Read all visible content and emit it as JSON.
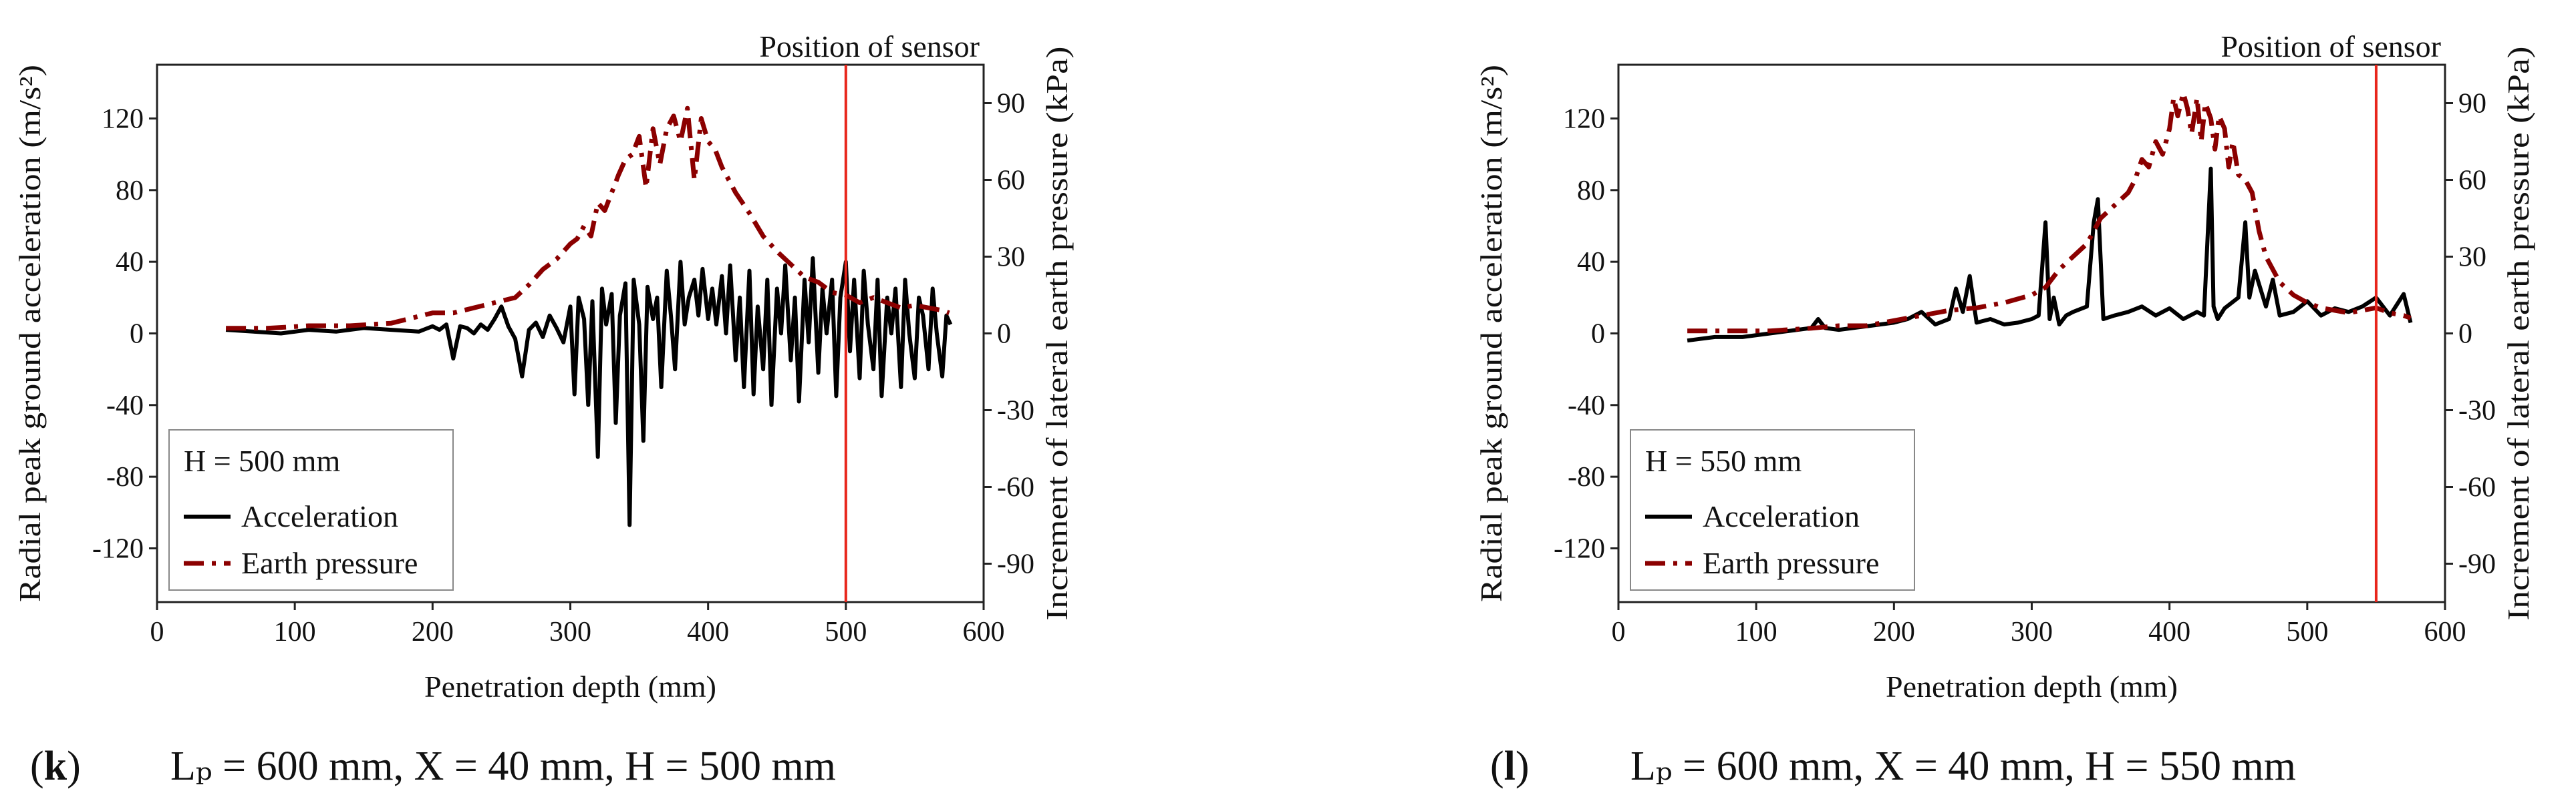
{
  "figure": {
    "panels": [
      {
        "id": "k",
        "caption_letter": "k",
        "caption_text": "Lₚ = 600 mm, X = 40 mm, H = 500 mm",
        "legend_title": "H = 500 mm",
        "sensor_label": "Position of sensor"
      },
      {
        "id": "l",
        "caption_letter": "l",
        "caption_text": "Lₚ = 600 mm, X = 40 mm, H = 550 mm",
        "legend_title": "H = 550 mm",
        "sensor_label": "Position of sensor"
      }
    ]
  },
  "chart_data": [
    {
      "type": "line",
      "panel": "k",
      "title": "",
      "xlabel": "Penetration depth (mm)",
      "ylabel": "Radial peak ground acceleration (m/s²)",
      "ylabel_right": "Increment of lateral earth pressure (kPa)",
      "xlim": [
        0,
        600
      ],
      "ylim": [
        -150,
        150
      ],
      "ylim_right": [
        -105,
        105
      ],
      "xticks": [
        0,
        100,
        200,
        300,
        400,
        500,
        600
      ],
      "yticks": [
        -120,
        -80,
        -40,
        0,
        40,
        80,
        120
      ],
      "yticks_right": [
        -90,
        -60,
        -30,
        0,
        30,
        60,
        90
      ],
      "sensor_position": 500,
      "legend_location": "lower-left",
      "colors": {
        "acceleration": "#000000",
        "earth_pressure": "#8B0000",
        "sensor": "#E8261C"
      },
      "series": [
        {
          "name": "Acceleration",
          "axis": "left",
          "style": "solid",
          "x": [
            50,
            70,
            90,
            110,
            130,
            150,
            170,
            190,
            200,
            205,
            210,
            215,
            220,
            225,
            230,
            235,
            240,
            245,
            250,
            255,
            260,
            265,
            270,
            275,
            280,
            285,
            290,
            295,
            300,
            303,
            306,
            310,
            313,
            316,
            320,
            323,
            326,
            330,
            333,
            336,
            340,
            343,
            346,
            350,
            353,
            356,
            360,
            363,
            366,
            370,
            373,
            376,
            380,
            383,
            386,
            390,
            393,
            396,
            400,
            403,
            406,
            410,
            413,
            416,
            420,
            423,
            426,
            430,
            433,
            436,
            440,
            443,
            446,
            450,
            453,
            456,
            460,
            463,
            466,
            470,
            473,
            476,
            480,
            483,
            486,
            490,
            493,
            496,
            500,
            503,
            506,
            510,
            513,
            516,
            520,
            523,
            526,
            530,
            533,
            536,
            540,
            543,
            546,
            550,
            553,
            556,
            560,
            563,
            566,
            570,
            573,
            576
          ],
          "values": [
            2,
            1,
            0,
            2,
            1,
            3,
            2,
            1,
            4,
            2,
            5,
            -14,
            4,
            3,
            0,
            5,
            2,
            8,
            15,
            4,
            -3,
            -24,
            2,
            6,
            -2,
            10,
            3,
            -5,
            15,
            -34,
            20,
            8,
            -40,
            18,
            -69,
            25,
            5,
            22,
            -50,
            10,
            28,
            -107,
            30,
            5,
            -60,
            26,
            8,
            20,
            -30,
            35,
            10,
            -20,
            40,
            5,
            20,
            30,
            10,
            36,
            8,
            25,
            5,
            32,
            0,
            38,
            -15,
            20,
            -30,
            35,
            -34,
            15,
            -20,
            30,
            -40,
            25,
            0,
            38,
            -15,
            20,
            -38,
            30,
            -5,
            42,
            -22,
            25,
            0,
            30,
            -35,
            20,
            40,
            -10,
            30,
            -25,
            35,
            5,
            -20,
            30,
            -35,
            20,
            0,
            25,
            -30,
            30,
            0,
            -25,
            20,
            10,
            -20,
            25,
            0,
            -24,
            10,
            5
          ]
        },
        {
          "name": "Earth pressure",
          "axis": "right",
          "style": "dash-dot",
          "x": [
            50,
            80,
            110,
            140,
            170,
            200,
            215,
            230,
            245,
            260,
            270,
            280,
            290,
            300,
            305,
            310,
            315,
            320,
            325,
            330,
            335,
            340,
            345,
            350,
            355,
            360,
            365,
            370,
            375,
            380,
            385,
            390,
            395,
            400,
            405,
            410,
            420,
            430,
            440,
            450,
            460,
            470,
            480,
            490,
            500,
            510,
            520,
            530,
            540,
            550,
            560,
            570,
            575
          ],
          "values": [
            2,
            2,
            3,
            3,
            4,
            8,
            8,
            10,
            12,
            14,
            19,
            25,
            29,
            35,
            37,
            42,
            38,
            51,
            48,
            55,
            62,
            68,
            70,
            77,
            57,
            80,
            66,
            80,
            85,
            75,
            88,
            60,
            84,
            75,
            72,
            65,
            55,
            47,
            38,
            32,
            27,
            22,
            20,
            16,
            15,
            12,
            14,
            12,
            10,
            11,
            10,
            9,
            8
          ]
        }
      ]
    },
    {
      "type": "line",
      "panel": "l",
      "title": "",
      "xlabel": "Penetration depth (mm)",
      "ylabel": "Radial peak ground acceleration (m/s²)",
      "ylabel_right": "Increment of lateral earth pressure (kPa)",
      "xlim": [
        0,
        600
      ],
      "ylim": [
        -150,
        150
      ],
      "ylim_right": [
        -105,
        105
      ],
      "xticks": [
        0,
        100,
        200,
        300,
        400,
        500,
        600
      ],
      "yticks": [
        -120,
        -80,
        -40,
        0,
        40,
        80,
        120
      ],
      "yticks_right": [
        -90,
        -60,
        -30,
        0,
        30,
        60,
        90
      ],
      "sensor_position": 550,
      "legend_location": "lower-left",
      "colors": {
        "acceleration": "#000000",
        "earth_pressure": "#8B0000",
        "sensor": "#E8261C"
      },
      "series": [
        {
          "name": "Acceleration",
          "axis": "left",
          "style": "solid",
          "x": [
            50,
            70,
            90,
            110,
            130,
            140,
            145,
            150,
            160,
            180,
            200,
            210,
            220,
            230,
            240,
            245,
            250,
            255,
            260,
            270,
            280,
            290,
            300,
            305,
            310,
            313,
            316,
            320,
            325,
            330,
            340,
            345,
            348,
            352,
            360,
            370,
            380,
            390,
            400,
            410,
            420,
            425,
            430,
            432,
            435,
            440,
            450,
            455,
            458,
            462,
            470,
            475,
            480,
            490,
            500,
            510,
            520,
            530,
            540,
            550,
            560,
            570,
            575
          ],
          "values": [
            -4,
            -2,
            -2,
            0,
            2,
            3,
            8,
            3,
            2,
            4,
            6,
            8,
            12,
            5,
            8,
            25,
            12,
            32,
            6,
            8,
            5,
            6,
            8,
            10,
            62,
            8,
            20,
            5,
            10,
            12,
            15,
            62,
            75,
            8,
            10,
            12,
            15,
            10,
            14,
            8,
            12,
            10,
            92,
            15,
            8,
            14,
            20,
            62,
            20,
            35,
            15,
            30,
            10,
            12,
            18,
            10,
            14,
            12,
            15,
            20,
            10,
            22,
            6
          ]
        },
        {
          "name": "Earth pressure",
          "axis": "right",
          "style": "dash-dot",
          "x": [
            50,
            80,
            110,
            140,
            160,
            180,
            200,
            220,
            240,
            260,
            280,
            300,
            310,
            320,
            330,
            340,
            350,
            360,
            370,
            375,
            380,
            385,
            390,
            395,
            400,
            403,
            406,
            410,
            413,
            416,
            420,
            423,
            426,
            430,
            433,
            436,
            440,
            443,
            446,
            450,
            455,
            460,
            465,
            470,
            480,
            490,
            500,
            510,
            520,
            530,
            540,
            550,
            560,
            570,
            575
          ],
          "values": [
            1,
            1,
            1,
            2,
            3,
            3,
            5,
            7,
            9,
            10,
            12,
            15,
            18,
            25,
            30,
            35,
            45,
            50,
            55,
            60,
            68,
            65,
            75,
            70,
            80,
            92,
            85,
            94,
            88,
            78,
            92,
            75,
            90,
            84,
            72,
            85,
            80,
            65,
            75,
            62,
            60,
            55,
            40,
            30,
            20,
            15,
            12,
            10,
            9,
            8,
            9,
            10,
            8,
            7,
            6
          ]
        }
      ]
    }
  ]
}
